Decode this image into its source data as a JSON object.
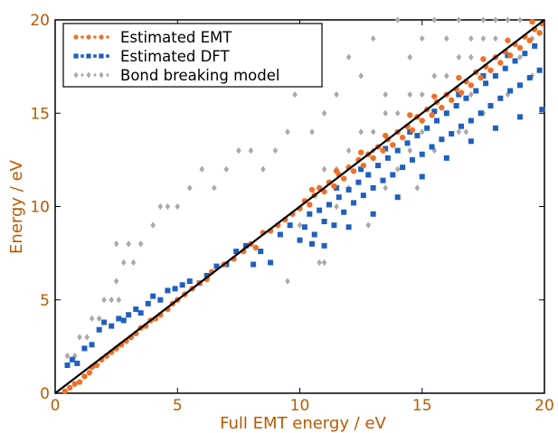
{
  "chart_data": {
    "type": "scatter",
    "title": "",
    "xlabel": "Full EMT energy / eV",
    "ylabel": "Energy / eV",
    "xlim": [
      0,
      20
    ],
    "ylim": [
      0,
      20
    ],
    "xticks": [
      "0",
      "5",
      "10",
      "15",
      "20"
    ],
    "yticks": [
      "0",
      "5",
      "10",
      "15",
      "20"
    ],
    "grid": false,
    "legend": "top-left",
    "reference_line": {
      "from": [
        0,
        0
      ],
      "to": [
        20,
        20
      ],
      "color": "#000000"
    },
    "colors": {
      "emt": "#f07028",
      "dft": "#1f5fbf",
      "bond": "#a9a9a9"
    },
    "series": [
      {
        "name": "Estimated EMT",
        "marker": "circle",
        "points": [
          [
            0.4,
            0.1
          ],
          [
            0.6,
            0.3
          ],
          [
            0.8,
            0.5
          ],
          [
            1.0,
            0.6
          ],
          [
            1.2,
            0.9
          ],
          [
            1.4,
            1.1
          ],
          [
            1.5,
            1.4
          ],
          [
            1.7,
            1.5
          ],
          [
            1.9,
            1.8
          ],
          [
            2.1,
            2.0
          ],
          [
            2.3,
            2.2
          ],
          [
            2.5,
            2.4
          ],
          [
            2.7,
            2.6
          ],
          [
            2.9,
            2.8
          ],
          [
            3.1,
            3.0
          ],
          [
            3.3,
            3.2
          ],
          [
            3.5,
            3.5
          ],
          [
            3.7,
            3.6
          ],
          [
            3.9,
            3.9
          ],
          [
            4.1,
            4.0
          ],
          [
            4.3,
            4.2
          ],
          [
            4.6,
            4.5
          ],
          [
            4.8,
            4.8
          ],
          [
            5.0,
            5.0
          ],
          [
            5.3,
            5.3
          ],
          [
            5.6,
            5.6
          ],
          [
            5.9,
            5.9
          ],
          [
            6.2,
            6.1
          ],
          [
            6.4,
            6.5
          ],
          [
            6.9,
            6.9
          ],
          [
            7.3,
            7.2
          ],
          [
            7.7,
            7.6
          ],
          [
            8.0,
            8.0
          ],
          [
            8.2,
            7.8
          ],
          [
            8.5,
            8.6
          ],
          [
            8.8,
            8.7
          ],
          [
            9.1,
            9.0
          ],
          [
            9.4,
            9.3
          ],
          [
            9.7,
            9.6
          ],
          [
            10.0,
            9.9
          ],
          [
            10.2,
            10.3
          ],
          [
            10.4,
            10.1
          ],
          [
            10.6,
            10.6
          ],
          [
            10.8,
            11.0
          ],
          [
            11.0,
            10.8
          ],
          [
            11.2,
            11.3
          ],
          [
            11.4,
            11.1
          ],
          [
            11.6,
            11.7
          ],
          [
            11.8,
            11.5
          ],
          [
            12.0,
            12.1
          ],
          [
            12.2,
            11.9
          ],
          [
            12.4,
            12.5
          ],
          [
            12.6,
            12.2
          ],
          [
            12.8,
            12.8
          ],
          [
            13.0,
            12.6
          ],
          [
            13.2,
            13.2
          ],
          [
            13.4,
            13.0
          ],
          [
            13.6,
            13.6
          ],
          [
            13.8,
            13.3
          ],
          [
            14.0,
            14.0
          ],
          [
            14.2,
            13.7
          ],
          [
            14.4,
            14.3
          ],
          [
            14.6,
            14.1
          ],
          [
            14.8,
            14.8
          ],
          [
            15.0,
            14.6
          ],
          [
            15.2,
            15.2
          ],
          [
            15.4,
            14.9
          ],
          [
            15.6,
            15.6
          ],
          [
            15.8,
            15.3
          ],
          [
            16.0,
            16.0
          ],
          [
            16.2,
            15.7
          ],
          [
            16.4,
            16.3
          ],
          [
            16.6,
            16.1
          ],
          [
            16.8,
            16.7
          ],
          [
            17.0,
            16.5
          ],
          [
            17.2,
            17.2
          ],
          [
            17.4,
            16.9
          ],
          [
            17.6,
            17.5
          ],
          [
            17.8,
            17.3
          ],
          [
            18.0,
            18.0
          ],
          [
            18.2,
            17.7
          ],
          [
            18.4,
            18.3
          ],
          [
            18.6,
            18.1
          ],
          [
            18.8,
            18.7
          ],
          [
            19.0,
            18.5
          ],
          [
            19.2,
            19.1
          ],
          [
            19.4,
            18.9
          ],
          [
            19.6,
            19.5
          ],
          [
            19.8,
            19.3
          ],
          [
            19.9,
            19.8
          ],
          [
            13.5,
            13.8
          ],
          [
            14.5,
            14.9
          ],
          [
            15.5,
            15.9
          ],
          [
            16.5,
            16.9
          ],
          [
            17.5,
            17.9
          ],
          [
            18.5,
            18.9
          ],
          [
            19.5,
            19.9
          ],
          [
            12.5,
            12.9
          ],
          [
            11.5,
            11.9
          ],
          [
            10.5,
            10.9
          ]
        ]
      },
      {
        "name": "Estimated DFT",
        "marker": "square",
        "points": [
          [
            0.5,
            1.5
          ],
          [
            0.7,
            1.8
          ],
          [
            0.9,
            1.6
          ],
          [
            1.2,
            2.4
          ],
          [
            1.5,
            2.6
          ],
          [
            1.8,
            3.4
          ],
          [
            2.0,
            3.8
          ],
          [
            2.3,
            3.6
          ],
          [
            2.6,
            4.0
          ],
          [
            2.8,
            3.9
          ],
          [
            3.0,
            4.2
          ],
          [
            3.3,
            4.5
          ],
          [
            3.5,
            4.3
          ],
          [
            3.8,
            4.8
          ],
          [
            4.0,
            5.2
          ],
          [
            4.3,
            5.0
          ],
          [
            4.6,
            5.5
          ],
          [
            4.9,
            5.6
          ],
          [
            5.2,
            5.8
          ],
          [
            5.5,
            6.0
          ],
          [
            5.9,
            5.9
          ],
          [
            6.2,
            6.3
          ],
          [
            6.6,
            6.8
          ],
          [
            7.0,
            6.9
          ],
          [
            7.4,
            7.6
          ],
          [
            7.8,
            7.9
          ],
          [
            8.1,
            6.9
          ],
          [
            8.4,
            7.6
          ],
          [
            8.8,
            7.0
          ],
          [
            9.2,
            8.5
          ],
          [
            9.6,
            9.0
          ],
          [
            10.0,
            8.2
          ],
          [
            10.2,
            8.9
          ],
          [
            10.4,
            9.6
          ],
          [
            10.6,
            8.5
          ],
          [
            10.8,
            9.8
          ],
          [
            11.0,
            9.2
          ],
          [
            11.2,
            10.1
          ],
          [
            11.4,
            9.0
          ],
          [
            11.6,
            10.5
          ],
          [
            11.8,
            9.7
          ],
          [
            12.0,
            10.9
          ],
          [
            12.2,
            10.2
          ],
          [
            12.4,
            11.3
          ],
          [
            12.6,
            10.6
          ],
          [
            12.8,
            11.7
          ],
          [
            13.0,
            11.0
          ],
          [
            13.2,
            12.2
          ],
          [
            13.4,
            11.4
          ],
          [
            13.6,
            12.6
          ],
          [
            13.8,
            11.7
          ],
          [
            14.0,
            13.0
          ],
          [
            14.2,
            12.1
          ],
          [
            14.4,
            13.4
          ],
          [
            14.6,
            12.5
          ],
          [
            14.8,
            13.8
          ],
          [
            15.0,
            12.8
          ],
          [
            15.2,
            14.2
          ],
          [
            15.4,
            13.2
          ],
          [
            15.6,
            14.6
          ],
          [
            15.8,
            13.6
          ],
          [
            16.0,
            15.0
          ],
          [
            16.2,
            13.9
          ],
          [
            16.4,
            15.4
          ],
          [
            16.6,
            14.3
          ],
          [
            16.8,
            15.8
          ],
          [
            17.0,
            14.6
          ],
          [
            17.2,
            16.2
          ],
          [
            17.4,
            15.0
          ],
          [
            17.6,
            16.6
          ],
          [
            17.8,
            15.4
          ],
          [
            18.0,
            17.0
          ],
          [
            18.2,
            15.8
          ],
          [
            18.4,
            17.4
          ],
          [
            18.6,
            16.2
          ],
          [
            18.8,
            17.8
          ],
          [
            19.0,
            16.5
          ],
          [
            19.2,
            18.2
          ],
          [
            19.4,
            16.9
          ],
          [
            19.6,
            18.6
          ],
          [
            19.8,
            17.3
          ],
          [
            19.9,
            15.2
          ],
          [
            11.5,
            11.0
          ],
          [
            12.5,
            12.0
          ],
          [
            13.5,
            13.1
          ],
          [
            14.5,
            14.0
          ],
          [
            15.5,
            15.1
          ],
          [
            16.5,
            16.0
          ],
          [
            17.5,
            17.0
          ],
          [
            18.5,
            18.1
          ],
          [
            12.0,
            8.9
          ],
          [
            13.0,
            9.6
          ],
          [
            14.0,
            10.5
          ],
          [
            15.0,
            11.6
          ],
          [
            16.0,
            12.6
          ],
          [
            17.0,
            13.5
          ],
          [
            18.0,
            14.2
          ],
          [
            19.0,
            14.8
          ],
          [
            10.5,
            8.0
          ],
          [
            11.0,
            7.9
          ]
        ]
      },
      {
        "name": "Bond breaking model",
        "marker": "diamond",
        "points": [
          [
            0.5,
            2.0
          ],
          [
            0.8,
            2.0
          ],
          [
            1.0,
            3.0
          ],
          [
            1.3,
            3.0
          ],
          [
            1.5,
            4.0
          ],
          [
            1.8,
            4.0
          ],
          [
            2.0,
            5.0
          ],
          [
            2.3,
            5.0
          ],
          [
            2.6,
            5.0
          ],
          [
            2.5,
            6.0
          ],
          [
            2.8,
            7.0
          ],
          [
            3.2,
            7.0
          ],
          [
            2.5,
            8.0
          ],
          [
            3.0,
            8.0
          ],
          [
            3.5,
            8.0
          ],
          [
            4.0,
            9.0
          ],
          [
            4.3,
            10.0
          ],
          [
            4.6,
            10.0
          ],
          [
            5.0,
            10.0
          ],
          [
            5.5,
            11.0
          ],
          [
            6.5,
            11.0
          ],
          [
            6.0,
            12.0
          ],
          [
            7.0,
            12.0
          ],
          [
            7.5,
            13.0
          ],
          [
            8.0,
            13.0
          ],
          [
            8.5,
            12.0
          ],
          [
            9.0,
            13.0
          ],
          [
            9.5,
            14.0
          ],
          [
            9.8,
            16.0
          ],
          [
            10.2,
            17.0
          ],
          [
            10.5,
            14.0
          ],
          [
            11.0,
            15.0
          ],
          [
            11.5,
            16.0
          ],
          [
            12.0,
            18.0
          ],
          [
            12.5,
            17.0
          ],
          [
            13.0,
            19.0
          ],
          [
            13.5,
            16.0
          ],
          [
            14.0,
            20.0
          ],
          [
            14.5,
            18.0
          ],
          [
            15.0,
            19.0
          ],
          [
            15.5,
            20.0
          ],
          [
            16.0,
            19.0
          ],
          [
            16.5,
            20.0
          ],
          [
            17.0,
            19.0
          ],
          [
            17.5,
            20.0
          ],
          [
            18.0,
            20.0
          ],
          [
            18.5,
            20.0
          ],
          [
            19.0,
            20.0
          ],
          [
            19.5,
            19.0
          ],
          [
            10.0,
            9.0
          ],
          [
            10.5,
            8.0
          ],
          [
            11.0,
            7.0
          ],
          [
            11.5,
            10.0
          ],
          [
            12.0,
            11.0
          ],
          [
            12.5,
            12.0
          ],
          [
            13.0,
            13.0
          ],
          [
            13.5,
            11.0
          ],
          [
            14.0,
            12.0
          ],
          [
            14.5,
            13.0
          ],
          [
            15.0,
            14.0
          ],
          [
            15.5,
            13.0
          ],
          [
            16.0,
            15.0
          ],
          [
            16.5,
            14.0
          ],
          [
            17.0,
            16.0
          ],
          [
            17.5,
            15.0
          ],
          [
            18.0,
            17.0
          ],
          [
            18.5,
            16.0
          ],
          [
            19.0,
            18.0
          ],
          [
            19.5,
            17.0
          ],
          [
            11.0,
            12.0
          ],
          [
            12.0,
            13.0
          ],
          [
            13.0,
            14.0
          ],
          [
            14.0,
            15.0
          ],
          [
            15.0,
            16.0
          ],
          [
            16.0,
            17.0
          ],
          [
            17.0,
            18.0
          ],
          [
            18.0,
            19.0
          ],
          [
            11.5,
            12.0
          ],
          [
            12.5,
            14.0
          ],
          [
            13.5,
            15.0
          ],
          [
            14.5,
            16.0
          ],
          [
            15.5,
            17.0
          ],
          [
            16.5,
            18.0
          ],
          [
            17.5,
            19.0
          ],
          [
            9.5,
            6.0
          ],
          [
            10.8,
            7.0
          ],
          [
            12.8,
            9.0
          ],
          [
            14.8,
            11.0
          ],
          [
            16.8,
            14.0
          ]
        ]
      }
    ]
  }
}
